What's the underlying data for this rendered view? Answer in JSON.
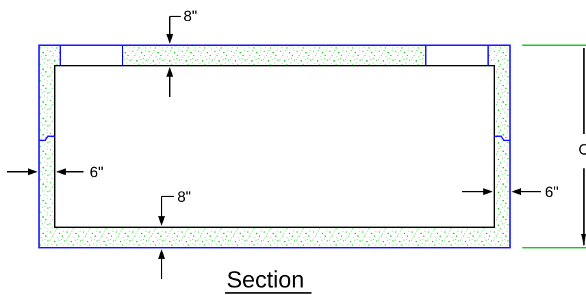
{
  "title": "Section",
  "dimensions": {
    "top_slab": "8\"",
    "bottom_slab": "8\"",
    "left_wall": "6\"",
    "right_wall": "6\"",
    "overall_height_partial": "C"
  },
  "colors": {
    "concrete_outline": "#1a1aff",
    "concrete_fill_dots": "#22cc22",
    "height_dim_line": "#22cc22",
    "lines": "#000000"
  }
}
